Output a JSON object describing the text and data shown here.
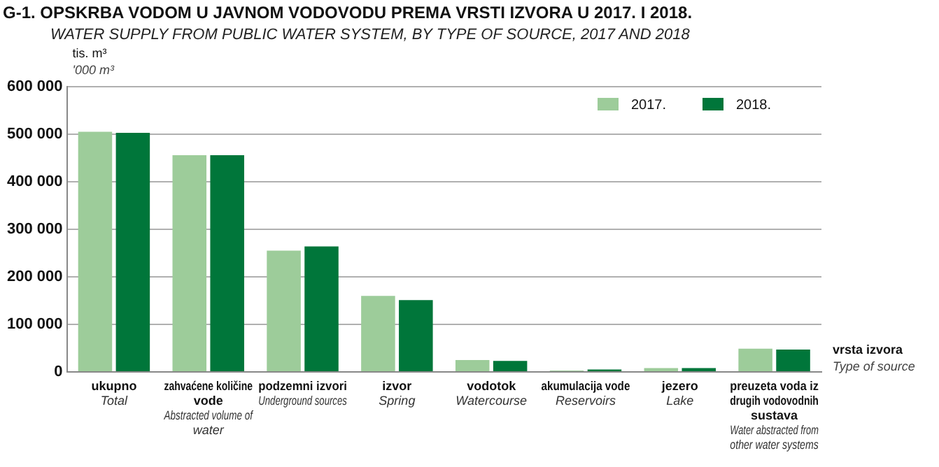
{
  "chart_data": {
    "type": "bar",
    "title": "G-1.  OPSKRBA VODOM U JAVNOM VODOVODU PREMA VRSTI IZVORA U 2017. I 2018.",
    "subtitle": "WATER SUPPLY FROM PUBLIC WATER SYSTEM, BY TYPE OF SOURCE, 2017 AND 2018",
    "ylabel": "tis. m³\n'000 m³",
    "xlabel": "vrsta izvora\nType of source",
    "categories": [
      "ukupno\nTotal",
      "zahvaćene količine vode\nAbstracted volume of water",
      "podzemni izvori\nUnderground sources",
      "izvor\nSpring",
      "vodotok\nWatercourse",
      "akumulacija vode\nReservoirs",
      "jezero\nLake",
      "preuzeta voda iz drugih vodovodnih sustava\nWater abstracted from other water systems"
    ],
    "series": [
      {
        "name": "2017.",
        "color": "#9dcc9a",
        "values": [
          505000,
          456000,
          255000,
          160000,
          25000,
          3000,
          8000,
          49000
        ]
      },
      {
        "name": "2018.",
        "color": "#00763a",
        "values": [
          503000,
          456000,
          264000,
          151000,
          23000,
          5000,
          8000,
          47000
        ]
      }
    ],
    "ylim": [
      0,
      600000
    ],
    "yticks": [
      {
        "value": 0,
        "label": "0"
      },
      {
        "value": 100000,
        "label": "100 000"
      },
      {
        "value": 200000,
        "label": "200 000"
      },
      {
        "value": 300000,
        "label": "300 000"
      },
      {
        "value": 400000,
        "label": "400 000"
      },
      {
        "value": 500000,
        "label": "500 000"
      },
      {
        "value": 600000,
        "label": "600 000"
      }
    ],
    "grid": "y",
    "legend": "top right"
  }
}
